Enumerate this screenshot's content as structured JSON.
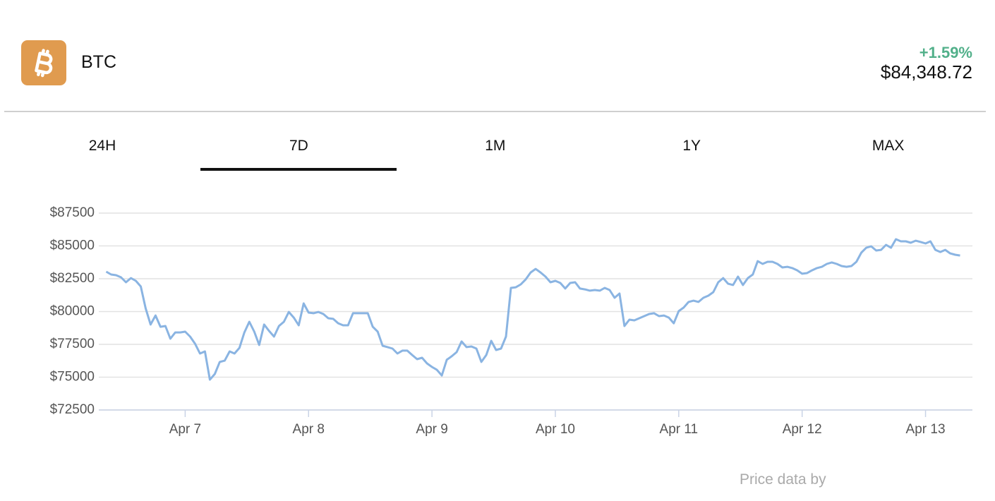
{
  "header": {
    "symbol": "BTC",
    "change": "+1.59%",
    "price": "$84,348.72"
  },
  "tabs": [
    {
      "label": "24H",
      "selected": false
    },
    {
      "label": "7D",
      "selected": true
    },
    {
      "label": "1M",
      "selected": false
    },
    {
      "label": "1Y",
      "selected": false
    },
    {
      "label": "MAX",
      "selected": false
    }
  ],
  "chart_data": {
    "type": "line",
    "color": "#8ab4e2",
    "grid": true,
    "xlim": [
      6.3,
      13.38
    ],
    "ylim": [
      72500,
      87500
    ],
    "xticks": [
      {
        "value": 7,
        "label": "Apr 7"
      },
      {
        "value": 8,
        "label": "Apr 8"
      },
      {
        "value": 9,
        "label": "Apr 9"
      },
      {
        "value": 10,
        "label": "Apr 10"
      },
      {
        "value": 11,
        "label": "Apr 11"
      },
      {
        "value": 12,
        "label": "Apr 12"
      },
      {
        "value": 13,
        "label": "Apr 13"
      }
    ],
    "yticks": [
      {
        "value": 72500,
        "label": "$72500"
      },
      {
        "value": 75000,
        "label": "$75000"
      },
      {
        "value": 77500,
        "label": "$77500"
      },
      {
        "value": 80000,
        "label": "$80000"
      },
      {
        "value": 82500,
        "label": "$82500"
      },
      {
        "value": 85000,
        "label": "$85000"
      },
      {
        "value": 87500,
        "label": "$87500"
      }
    ],
    "x": [
      6.36,
      6.4,
      6.44,
      6.48,
      6.52,
      6.56,
      6.6,
      6.64,
      6.68,
      6.72,
      6.76,
      6.8,
      6.84,
      6.88,
      6.92,
      6.96,
      7,
      7.04,
      7.08,
      7.12,
      7.16,
      7.2,
      7.24,
      7.28,
      7.32,
      7.36,
      7.4,
      7.44,
      7.48,
      7.52,
      7.56,
      7.6,
      7.64,
      7.68,
      7.72,
      7.76,
      7.8,
      7.84,
      7.88,
      7.92,
      7.96,
      8,
      8.04,
      8.08,
      8.12,
      8.16,
      8.2,
      8.24,
      8.28,
      8.32,
      8.36,
      8.4,
      8.44,
      8.48,
      8.52,
      8.56,
      8.6,
      8.64,
      8.68,
      8.72,
      8.76,
      8.8,
      8.84,
      8.88,
      8.92,
      8.96,
      9,
      9.04,
      9.08,
      9.12,
      9.16,
      9.2,
      9.24,
      9.28,
      9.32,
      9.36,
      9.4,
      9.44,
      9.48,
      9.52,
      9.56,
      9.6,
      9.64,
      9.68,
      9.72,
      9.76,
      9.8,
      9.84,
      9.88,
      9.92,
      9.96,
      10,
      10.04,
      10.08,
      10.12,
      10.16,
      10.2,
      10.24,
      10.28,
      10.32,
      10.36,
      10.4,
      10.44,
      10.48,
      10.52,
      10.56,
      10.6,
      10.64,
      10.68,
      10.72,
      10.76,
      10.8,
      10.84,
      10.88,
      10.92,
      10.96,
      11,
      11.04,
      11.08,
      11.12,
      11.16,
      11.2,
      11.24,
      11.28,
      11.32,
      11.36,
      11.4,
      11.44,
      11.48,
      11.52,
      11.56,
      11.6,
      11.64,
      11.68,
      11.72,
      11.76,
      11.8,
      11.84,
      11.88,
      11.92,
      11.96,
      12,
      12.04,
      12.08,
      12.12,
      12.16,
      12.2,
      12.24,
      12.28,
      12.32,
      12.36,
      12.4,
      12.44,
      12.48,
      12.52,
      12.56,
      12.6,
      12.64,
      12.68,
      12.72,
      12.76,
      12.8,
      12.84,
      12.88,
      12.92,
      12.96,
      13,
      13.04,
      13.08,
      13.12,
      13.16,
      13.2,
      13.24,
      13.28
    ],
    "values": [
      83040,
      82820,
      82770,
      82610,
      82230,
      82550,
      82340,
      81910,
      80240,
      79010,
      79700,
      78840,
      78900,
      77930,
      78410,
      78410,
      78470,
      78090,
      77550,
      76800,
      76960,
      74810,
      75240,
      76160,
      76260,
      76960,
      76800,
      77230,
      78410,
      79220,
      78470,
      77450,
      79010,
      78520,
      78090,
      78900,
      79220,
      79970,
      79540,
      78950,
      80620,
      79920,
      79870,
      79970,
      79810,
      79490,
      79440,
      79110,
      78950,
      78950,
      79870,
      79870,
      79870,
      79870,
      78840,
      78470,
      77390,
      77290,
      77180,
      76800,
      77020,
      77020,
      76690,
      76370,
      76480,
      76050,
      75780,
      75560,
      75130,
      76320,
      76590,
      76910,
      77720,
      77290,
      77340,
      77180,
      76160,
      76690,
      77770,
      77070,
      77180,
      78090,
      81800,
      81850,
      82070,
      82450,
      82980,
      83250,
      82980,
      82660,
      82230,
      82340,
      82180,
      81750,
      82180,
      82230,
      81750,
      81690,
      81590,
      81640,
      81590,
      81800,
      81640,
      81050,
      81370,
      78900,
      79380,
      79330,
      79490,
      79650,
      79810,
      79870,
      79650,
      79700,
      79540,
      79110,
      80030,
      80300,
      80730,
      80830,
      80730,
      81050,
      81210,
      81480,
      82230,
      82550,
      82120,
      82020,
      82660,
      82020,
      82550,
      82820,
      83840,
      83630,
      83790,
      83790,
      83630,
      83360,
      83410,
      83310,
      83140,
      82880,
      82930,
      83140,
      83310,
      83410,
      83630,
      83740,
      83630,
      83470,
      83410,
      83470,
      83790,
      84490,
      84860,
      84970,
      84650,
      84700,
      85080,
      84860,
      85510,
      85350,
      85350,
      85240,
      85400,
      85300,
      85190,
      85350,
      84700,
      84540,
      84700,
      84430,
      84330,
      84270
    ]
  },
  "footer": {
    "credit": "Price data by"
  }
}
